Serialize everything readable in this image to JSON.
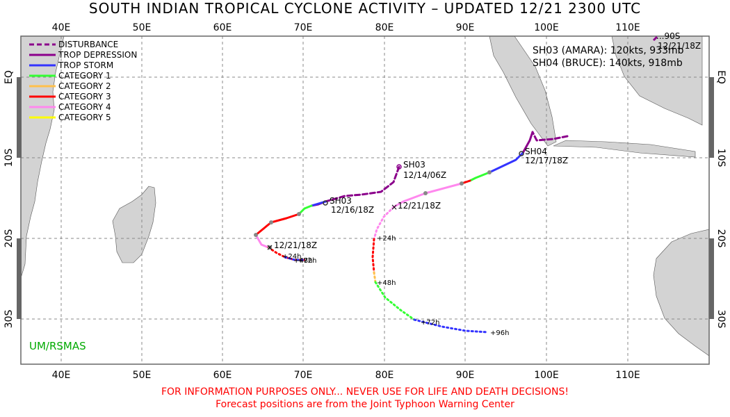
{
  "title": "SOUTH INDIAN TROPICAL CYCLONE ACTIVITY – UPDATED 12/21 2300 UTC",
  "axes": {
    "lon_labels": [
      "40E",
      "50E",
      "60E",
      "70E",
      "80E",
      "90E",
      "100E",
      "110E"
    ],
    "lat_labels": [
      "EQ",
      "10S",
      "20S",
      "30S"
    ]
  },
  "legend": [
    {
      "label": "DISTURBANCE",
      "color": "#8b008b",
      "style": "dashed"
    },
    {
      "label": "TROP DEPRESSION",
      "color": "#8b008b",
      "style": "solid"
    },
    {
      "label": "TROP STORM",
      "color": "#3333ff",
      "style": "solid"
    },
    {
      "label": "CATEGORY 1",
      "color": "#33ff33",
      "style": "solid"
    },
    {
      "label": "CATEGORY 2",
      "color": "#ffc04c",
      "style": "solid"
    },
    {
      "label": "CATEGORY 3",
      "color": "#ff0000",
      "style": "solid"
    },
    {
      "label": "CATEGORY 4",
      "color": "#ff88ee",
      "style": "solid"
    },
    {
      "label": "CATEGORY 5",
      "color": "#ffff00",
      "style": "solid"
    }
  ],
  "storm_info": [
    "SH03 (AMARA): 120kts, 933mb",
    "SH04 (BRUCE): 140kts, 918mb"
  ],
  "track_labels": {
    "sh03_start_id": "SH03",
    "sh03_start_time": "12/14/06Z",
    "sh03_mid_id": "SH03",
    "sh03_mid_time": "12/16/18Z",
    "sh03_current": "12/21/18Z",
    "sh03_forecast": [
      "+24h",
      "+48h",
      "+72h"
    ],
    "sh04_id": "SH04",
    "sh04_time": "12/17/18Z",
    "sh04_current": "12/21/18Z",
    "sh04_forecast": [
      "+24h",
      "+48h",
      "+72h",
      "+96h"
    ],
    "corner_id": "...90S",
    "corner_time": "12/21/18Z"
  },
  "credit": "UM/RSMAS",
  "disclaimer": "FOR INFORMATION PURPOSES ONLY... NEVER USE FOR LIFE AND DEATH DECISIONS!",
  "source_note": "Forecast positions are from the Joint Typhoon Warning Center",
  "colors": {
    "land": "#d3d3d3",
    "grid": "#888888",
    "credit": "#00aa00",
    "disclaimer": "#ff0000"
  }
}
